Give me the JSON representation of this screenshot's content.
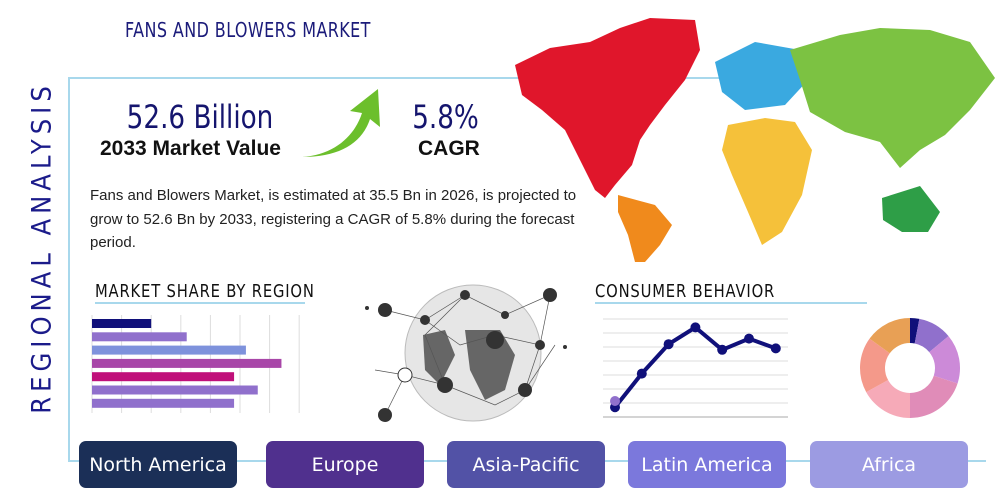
{
  "header": {
    "title": "FANS AND BLOWERS MARKET",
    "side_title": "REGIONAL ANALYSIS"
  },
  "stats": {
    "market_value": "52.6 Billion",
    "market_value_label": "2033 Market Value",
    "cagr": "5.8%",
    "cagr_label": "CAGR"
  },
  "description": "Fans and Blowers Market, is estimated at 35.5 Bn in 2026, is projected to grow to 52.6 Bn by 2033, registering a CAGR of 5.8% during the forecast period.",
  "sections": {
    "market_share": "MARKET SHARE BY REGION",
    "consumer": "CONSUMER BEHAVIOR"
  },
  "regions": [
    {
      "label": "North America",
      "color": "#1b2f57"
    },
    {
      "label": "Europe",
      "color": "#50308e"
    },
    {
      "label": "Asia-Pacific",
      "color": "#5252a6"
    },
    {
      "label": "Latin America",
      "color": "#7b78dc"
    },
    {
      "label": "Africa",
      "color": "#9c9be2"
    }
  ],
  "chart_data": [
    {
      "type": "bar",
      "orientation": "horizontal",
      "values": [
        2.0,
        3.2,
        5.2,
        6.4,
        4.8,
        5.6,
        4.8
      ],
      "colors": [
        "#10107a",
        "#9070cc",
        "#7e92dc",
        "#a846a8",
        "#c0107a",
        "#9070cc",
        "#9070cc"
      ],
      "xlim": [
        0,
        7
      ],
      "grid": true
    },
    {
      "type": "line",
      "values": [
        0.7,
        3.1,
        5.2,
        6.4,
        4.8,
        5.6,
        4.9
      ],
      "ylim": [
        0,
        7
      ],
      "grid": true,
      "color": "#10107a"
    },
    {
      "type": "pie",
      "donut": true,
      "values": [
        3,
        11,
        16,
        20,
        17,
        18,
        15
      ],
      "colors": [
        "#10107a",
        "#9070cc",
        "#cc8ad8",
        "#e08cb8",
        "#f6aab8",
        "#f4998a",
        "#e8a055"
      ]
    }
  ],
  "map_colors": {
    "north_america": "#e0162b",
    "south_america": "#f08a1c",
    "europe": "#3aa9e0",
    "asia": "#7cc242",
    "africa": "#f5c13a",
    "oceania": "#2e9e47"
  }
}
